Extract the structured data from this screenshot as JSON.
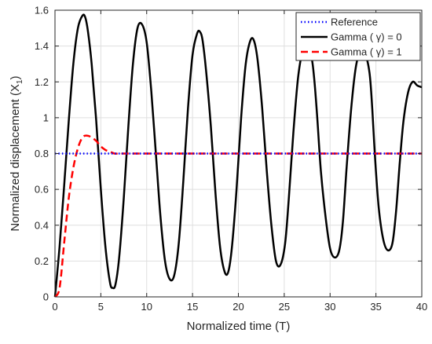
{
  "chart_data": {
    "type": "line",
    "title": "",
    "xlabel": "Normalized time (T)",
    "ylabel_main": "Normalized displacement (X",
    "ylabel_sub": "1",
    "ylabel_close": ")",
    "xlim": [
      0,
      40
    ],
    "ylim": [
      0,
      1.6
    ],
    "xticks": [
      0,
      5,
      10,
      15,
      20,
      25,
      30,
      35,
      40
    ],
    "yticks": [
      0,
      0.2,
      0.4,
      0.6,
      0.8,
      1,
      1.2,
      1.4,
      1.6
    ],
    "grid": true,
    "legend_position": "top-right",
    "series": [
      {
        "name": "Reference",
        "style": "dotted",
        "color": "#0000ff",
        "x": [
          0,
          40
        ],
        "y": [
          0.8,
          0.8
        ]
      },
      {
        "name": "Gamma ( γ) = 0",
        "style": "solid",
        "color": "#000000",
        "x": [
          0,
          0.5,
          1,
          1.5,
          2,
          2.5,
          3,
          3.3,
          3.6,
          4,
          4.5,
          5,
          5.5,
          6,
          6.3,
          6.6,
          7,
          7.5,
          8,
          8.5,
          9,
          9.5,
          10,
          10.5,
          11,
          11.5,
          12,
          12.5,
          13,
          13.5,
          14,
          14.5,
          15,
          15.5,
          15.8,
          16.1,
          16.5,
          17,
          17.5,
          18,
          18.5,
          18.9,
          19.3,
          19.8,
          20.3,
          20.8,
          21.3,
          21.7,
          22.1,
          22.6,
          23.1,
          23.6,
          24.1,
          24.6,
          25.1,
          25.5,
          26.0,
          26.5,
          27.0,
          27.5,
          28.0,
          28.3,
          28.6,
          29.0,
          29.5,
          30.0,
          30.5,
          31.0,
          31.4,
          31.8,
          32.3,
          32.8,
          33.3,
          33.8,
          34.3,
          34.6,
          34.9,
          35.3,
          35.8,
          36.3,
          36.8,
          37.2,
          37.6,
          38.0,
          38.5,
          39.0,
          39.5,
          40.0
        ],
        "y": [
          0,
          0.28,
          0.62,
          0.98,
          1.3,
          1.5,
          1.57,
          1.56,
          1.48,
          1.3,
          0.98,
          0.6,
          0.28,
          0.08,
          0.05,
          0.07,
          0.22,
          0.55,
          0.95,
          1.3,
          1.5,
          1.52,
          1.42,
          1.15,
          0.8,
          0.45,
          0.2,
          0.1,
          0.12,
          0.3,
          0.65,
          1.05,
          1.35,
          1.47,
          1.48,
          1.43,
          1.25,
          0.95,
          0.58,
          0.28,
          0.14,
          0.14,
          0.28,
          0.6,
          1.0,
          1.3,
          1.43,
          1.43,
          1.32,
          1.05,
          0.7,
          0.4,
          0.2,
          0.18,
          0.3,
          0.55,
          0.92,
          1.22,
          1.37,
          1.39,
          1.33,
          1.2,
          1.0,
          0.7,
          0.45,
          0.27,
          0.22,
          0.26,
          0.42,
          0.72,
          1.05,
          1.28,
          1.37,
          1.36,
          1.25,
          1.05,
          0.78,
          0.5,
          0.32,
          0.26,
          0.3,
          0.48,
          0.75,
          0.98,
          1.14,
          1.2,
          1.18,
          1.17
        ]
      },
      {
        "name": "Gamma ( γ) = 1",
        "style": "dashed",
        "color": "#ff0000",
        "x": [
          0,
          0.5,
          1,
          1.5,
          2,
          2.5,
          3,
          3.5,
          4,
          4.5,
          5,
          5.5,
          6,
          6.5,
          7,
          8,
          10,
          15,
          20,
          25,
          30,
          35,
          40
        ],
        "y": [
          0,
          0.05,
          0.3,
          0.55,
          0.72,
          0.83,
          0.89,
          0.9,
          0.89,
          0.87,
          0.84,
          0.82,
          0.81,
          0.8,
          0.8,
          0.8,
          0.8,
          0.8,
          0.8,
          0.8,
          0.8,
          0.8,
          0.8
        ]
      }
    ]
  }
}
